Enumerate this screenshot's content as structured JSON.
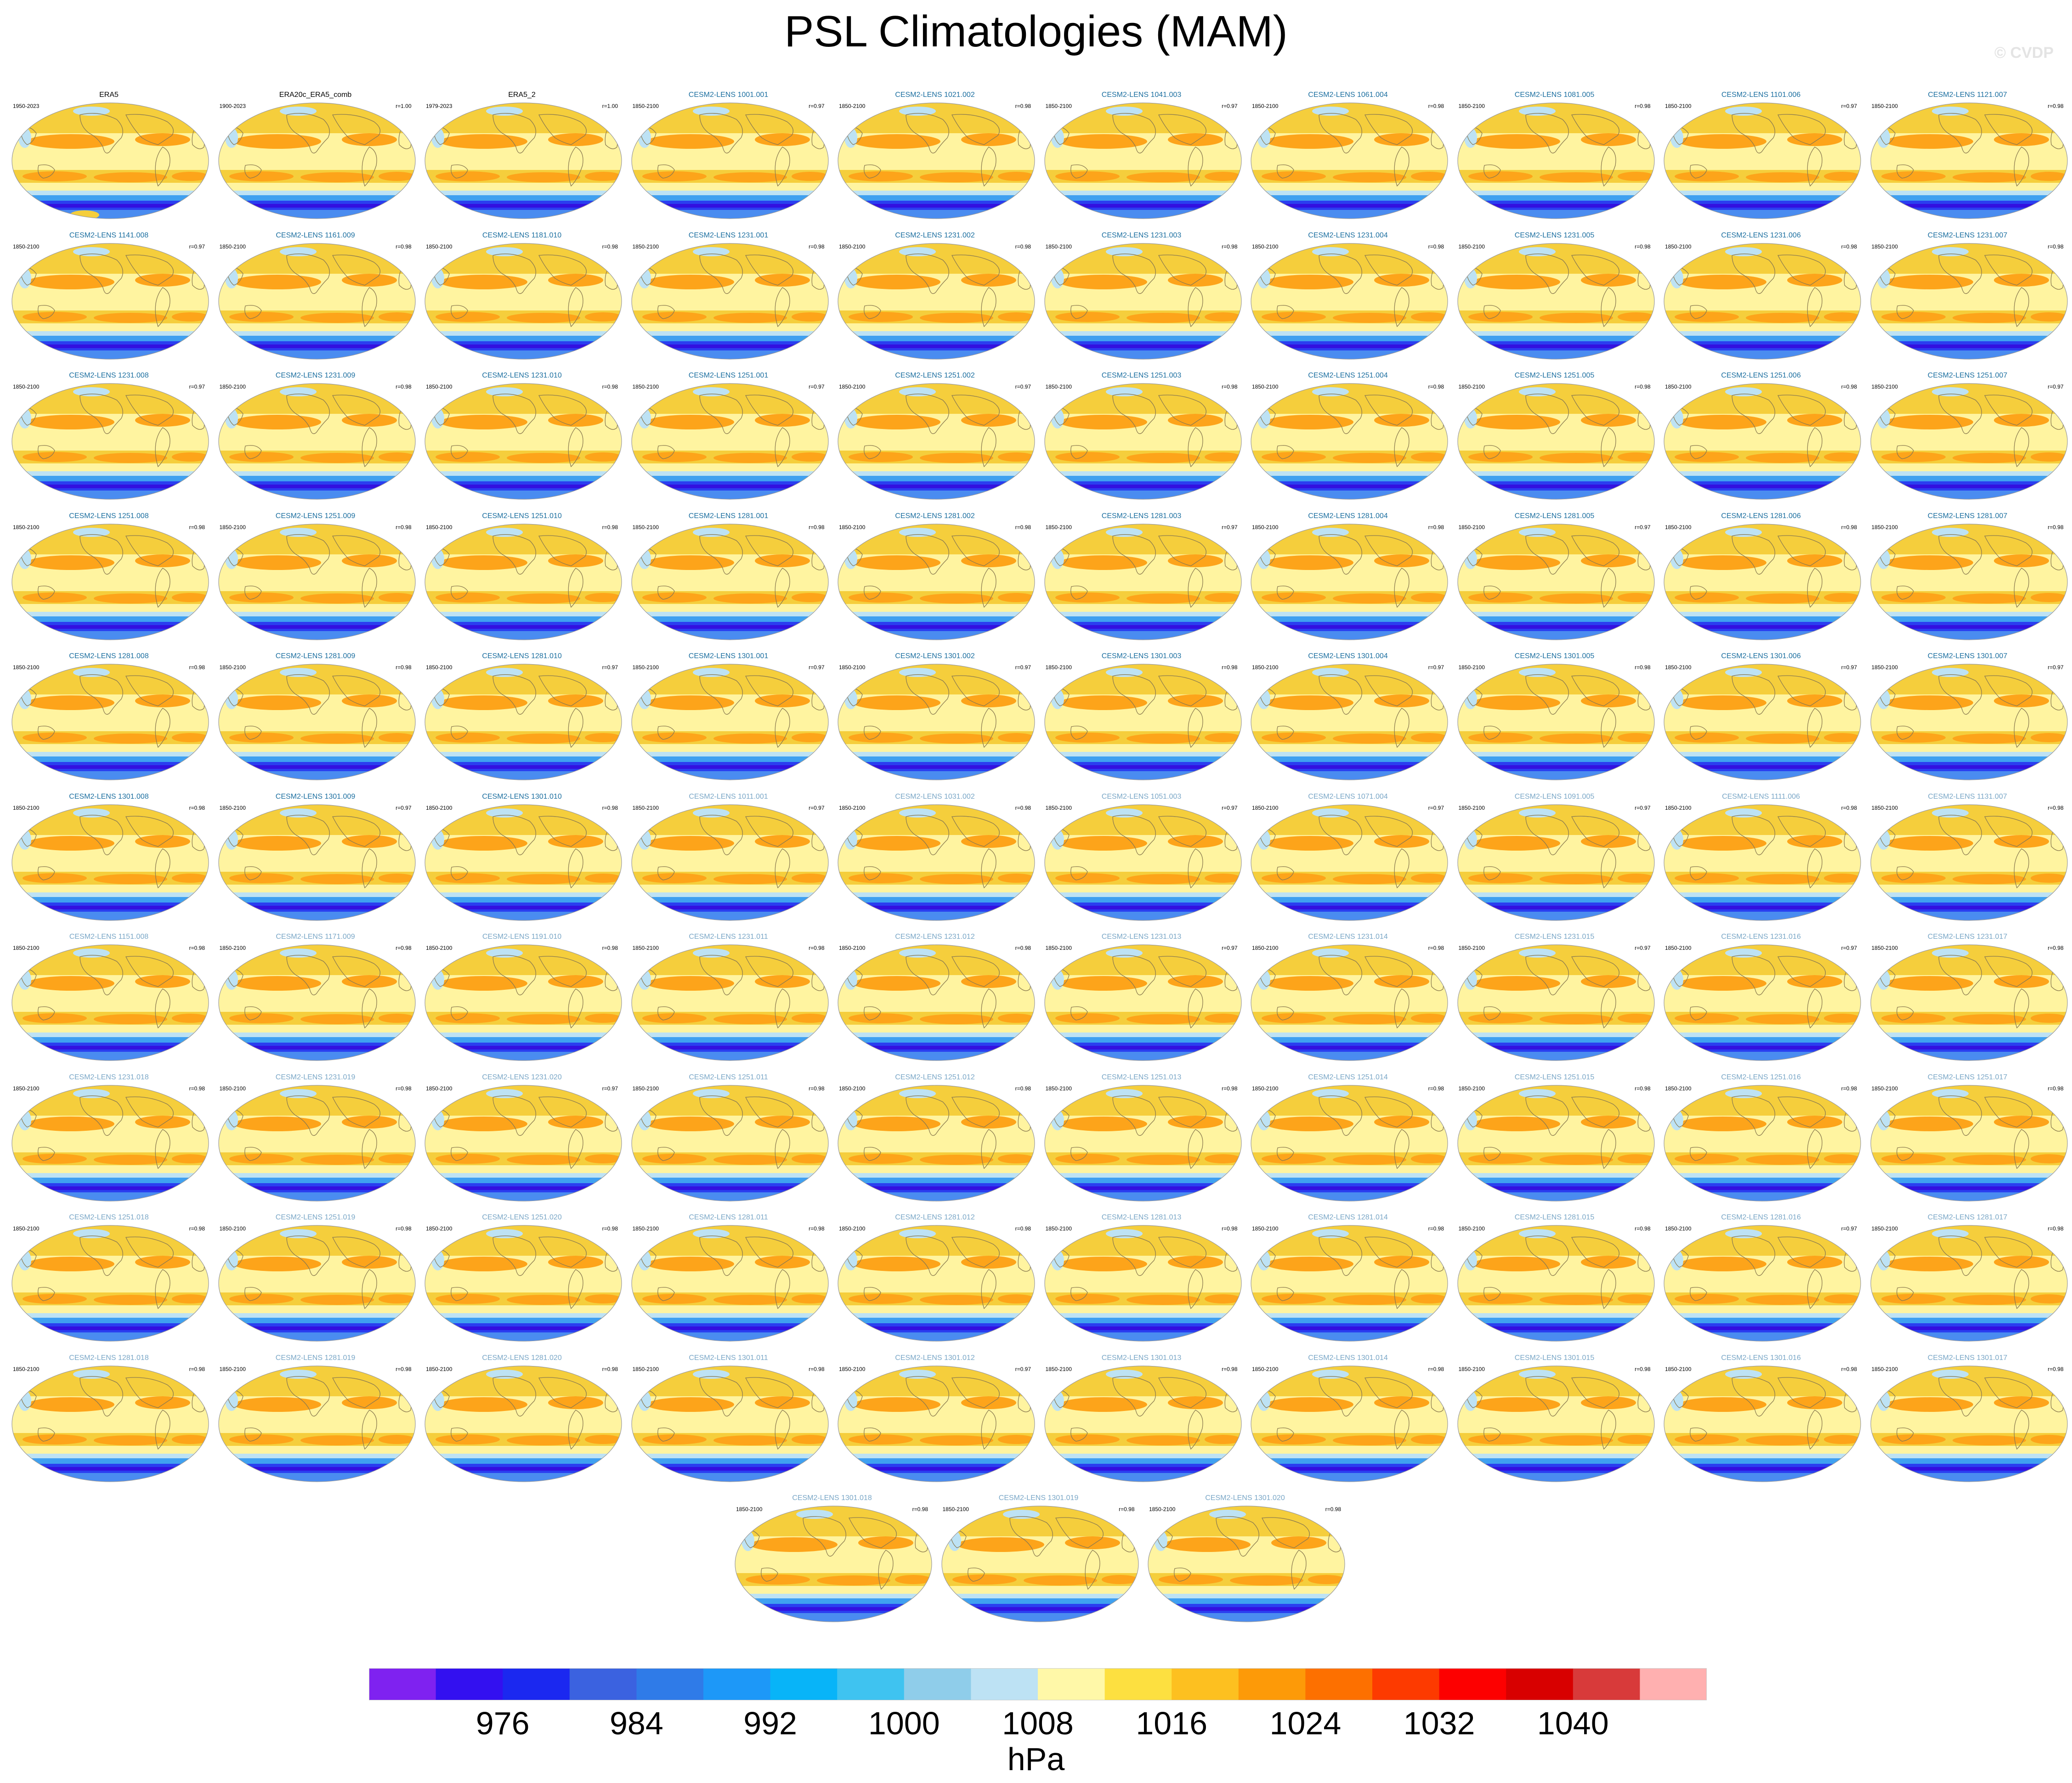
{
  "title": "PSL Climatologies (MAM)",
  "watermark": "© CVDP",
  "panels": [
    {
      "name": "ERA5",
      "years": "1950-2023",
      "r": "",
      "style": "obs"
    },
    {
      "name": "ERA20c_ERA5_comb",
      "years": "1900-2023",
      "r": "r=1.00",
      "style": "obs"
    },
    {
      "name": "ERA5_2",
      "years": "1979-2023",
      "r": "r=1.00",
      "style": "obs"
    },
    {
      "name": "CESM2-LENS 1001.001",
      "years": "1850-2100",
      "r": "r=0.97",
      "style": "m1"
    },
    {
      "name": "CESM2-LENS 1021.002",
      "years": "1850-2100",
      "r": "r=0.98",
      "style": "m1"
    },
    {
      "name": "CESM2-LENS 1041.003",
      "years": "1850-2100",
      "r": "r=0.97",
      "style": "m1"
    },
    {
      "name": "CESM2-LENS 1061.004",
      "years": "1850-2100",
      "r": "r=0.98",
      "style": "m1"
    },
    {
      "name": "CESM2-LENS 1081.005",
      "years": "1850-2100",
      "r": "r=0.98",
      "style": "m1"
    },
    {
      "name": "CESM2-LENS 1101.006",
      "years": "1850-2100",
      "r": "r=0.97",
      "style": "m1"
    },
    {
      "name": "CESM2-LENS 1121.007",
      "years": "1850-2100",
      "r": "r=0.98",
      "style": "m1"
    },
    {
      "name": "CESM2-LENS 1141.008",
      "years": "1850-2100",
      "r": "r=0.97",
      "style": "m1"
    },
    {
      "name": "CESM2-LENS 1161.009",
      "years": "1850-2100",
      "r": "r=0.98",
      "style": "m1"
    },
    {
      "name": "CESM2-LENS 1181.010",
      "years": "1850-2100",
      "r": "r=0.98",
      "style": "m1"
    },
    {
      "name": "CESM2-LENS 1231.001",
      "years": "1850-2100",
      "r": "r=0.98",
      "style": "m1"
    },
    {
      "name": "CESM2-LENS 1231.002",
      "years": "1850-2100",
      "r": "r=0.98",
      "style": "m1"
    },
    {
      "name": "CESM2-LENS 1231.003",
      "years": "1850-2100",
      "r": "r=0.98",
      "style": "m1"
    },
    {
      "name": "CESM2-LENS 1231.004",
      "years": "1850-2100",
      "r": "r=0.98",
      "style": "m1"
    },
    {
      "name": "CESM2-LENS 1231.005",
      "years": "1850-2100",
      "r": "r=0.98",
      "style": "m1"
    },
    {
      "name": "CESM2-LENS 1231.006",
      "years": "1850-2100",
      "r": "r=0.98",
      "style": "m1"
    },
    {
      "name": "CESM2-LENS 1231.007",
      "years": "1850-2100",
      "r": "r=0.98",
      "style": "m1"
    },
    {
      "name": "CESM2-LENS 1231.008",
      "years": "1850-2100",
      "r": "r=0.97",
      "style": "m1"
    },
    {
      "name": "CESM2-LENS 1231.009",
      "years": "1850-2100",
      "r": "r=0.98",
      "style": "m1"
    },
    {
      "name": "CESM2-LENS 1231.010",
      "years": "1850-2100",
      "r": "r=0.98",
      "style": "m1"
    },
    {
      "name": "CESM2-LENS 1251.001",
      "years": "1850-2100",
      "r": "r=0.97",
      "style": "m1"
    },
    {
      "name": "CESM2-LENS 1251.002",
      "years": "1850-2100",
      "r": "r=0.97",
      "style": "m1"
    },
    {
      "name": "CESM2-LENS 1251.003",
      "years": "1850-2100",
      "r": "r=0.98",
      "style": "m1"
    },
    {
      "name": "CESM2-LENS 1251.004",
      "years": "1850-2100",
      "r": "r=0.98",
      "style": "m1"
    },
    {
      "name": "CESM2-LENS 1251.005",
      "years": "1850-2100",
      "r": "r=0.98",
      "style": "m1"
    },
    {
      "name": "CESM2-LENS 1251.006",
      "years": "1850-2100",
      "r": "r=0.98",
      "style": "m1"
    },
    {
      "name": "CESM2-LENS 1251.007",
      "years": "1850-2100",
      "r": "r=0.97",
      "style": "m1"
    },
    {
      "name": "CESM2-LENS 1251.008",
      "years": "1850-2100",
      "r": "r=0.98",
      "style": "m1"
    },
    {
      "name": "CESM2-LENS 1251.009",
      "years": "1850-2100",
      "r": "r=0.98",
      "style": "m1"
    },
    {
      "name": "CESM2-LENS 1251.010",
      "years": "1850-2100",
      "r": "r=0.98",
      "style": "m1"
    },
    {
      "name": "CESM2-LENS 1281.001",
      "years": "1850-2100",
      "r": "r=0.98",
      "style": "m1"
    },
    {
      "name": "CESM2-LENS 1281.002",
      "years": "1850-2100",
      "r": "r=0.98",
      "style": "m1"
    },
    {
      "name": "CESM2-LENS 1281.003",
      "years": "1850-2100",
      "r": "r=0.97",
      "style": "m1"
    },
    {
      "name": "CESM2-LENS 1281.004",
      "years": "1850-2100",
      "r": "r=0.98",
      "style": "m1"
    },
    {
      "name": "CESM2-LENS 1281.005",
      "years": "1850-2100",
      "r": "r=0.97",
      "style": "m1"
    },
    {
      "name": "CESM2-LENS 1281.006",
      "years": "1850-2100",
      "r": "r=0.98",
      "style": "m1"
    },
    {
      "name": "CESM2-LENS 1281.007",
      "years": "1850-2100",
      "r": "r=0.98",
      "style": "m1"
    },
    {
      "name": "CESM2-LENS 1281.008",
      "years": "1850-2100",
      "r": "r=0.98",
      "style": "m1"
    },
    {
      "name": "CESM2-LENS 1281.009",
      "years": "1850-2100",
      "r": "r=0.98",
      "style": "m1"
    },
    {
      "name": "CESM2-LENS 1281.010",
      "years": "1850-2100",
      "r": "r=0.97",
      "style": "m1"
    },
    {
      "name": "CESM2-LENS 1301.001",
      "years": "1850-2100",
      "r": "r=0.97",
      "style": "m1"
    },
    {
      "name": "CESM2-LENS 1301.002",
      "years": "1850-2100",
      "r": "r=0.97",
      "style": "m1"
    },
    {
      "name": "CESM2-LENS 1301.003",
      "years": "1850-2100",
      "r": "r=0.98",
      "style": "m1"
    },
    {
      "name": "CESM2-LENS 1301.004",
      "years": "1850-2100",
      "r": "r=0.97",
      "style": "m1"
    },
    {
      "name": "CESM2-LENS 1301.005",
      "years": "1850-2100",
      "r": "r=0.98",
      "style": "m1"
    },
    {
      "name": "CESM2-LENS 1301.006",
      "years": "1850-2100",
      "r": "r=0.97",
      "style": "m1"
    },
    {
      "name": "CESM2-LENS 1301.007",
      "years": "1850-2100",
      "r": "r=0.97",
      "style": "m1"
    },
    {
      "name": "CESM2-LENS 1301.008",
      "years": "1850-2100",
      "r": "r=0.98",
      "style": "m1"
    },
    {
      "name": "CESM2-LENS 1301.009",
      "years": "1850-2100",
      "r": "r=0.97",
      "style": "m1"
    },
    {
      "name": "CESM2-LENS 1301.010",
      "years": "1850-2100",
      "r": "r=0.98",
      "style": "m1"
    },
    {
      "name": "CESM2-LENS 1011.001",
      "years": "1850-2100",
      "r": "r=0.97",
      "style": "m2"
    },
    {
      "name": "CESM2-LENS 1031.002",
      "years": "1850-2100",
      "r": "r=0.98",
      "style": "m2"
    },
    {
      "name": "CESM2-LENS 1051.003",
      "years": "1850-2100",
      "r": "r=0.97",
      "style": "m2"
    },
    {
      "name": "CESM2-LENS 1071.004",
      "years": "1850-2100",
      "r": "r=0.97",
      "style": "m2"
    },
    {
      "name": "CESM2-LENS 1091.005",
      "years": "1850-2100",
      "r": "r=0.97",
      "style": "m2"
    },
    {
      "name": "CESM2-LENS 1111.006",
      "years": "1850-2100",
      "r": "r=0.98",
      "style": "m2"
    },
    {
      "name": "CESM2-LENS 1131.007",
      "years": "1850-2100",
      "r": "r=0.98",
      "style": "m2"
    },
    {
      "name": "CESM2-LENS 1151.008",
      "years": "1850-2100",
      "r": "r=0.98",
      "style": "m2"
    },
    {
      "name": "CESM2-LENS 1171.009",
      "years": "1850-2100",
      "r": "r=0.98",
      "style": "m2"
    },
    {
      "name": "CESM2-LENS 1191.010",
      "years": "1850-2100",
      "r": "r=0.98",
      "style": "m2"
    },
    {
      "name": "CESM2-LENS 1231.011",
      "years": "1850-2100",
      "r": "r=0.98",
      "style": "m2"
    },
    {
      "name": "CESM2-LENS 1231.012",
      "years": "1850-2100",
      "r": "r=0.98",
      "style": "m2"
    },
    {
      "name": "CESM2-LENS 1231.013",
      "years": "1850-2100",
      "r": "r=0.97",
      "style": "m2"
    },
    {
      "name": "CESM2-LENS 1231.014",
      "years": "1850-2100",
      "r": "r=0.98",
      "style": "m2"
    },
    {
      "name": "CESM2-LENS 1231.015",
      "years": "1850-2100",
      "r": "r=0.97",
      "style": "m2"
    },
    {
      "name": "CESM2-LENS 1231.016",
      "years": "1850-2100",
      "r": "r=0.97",
      "style": "m2"
    },
    {
      "name": "CESM2-LENS 1231.017",
      "years": "1850-2100",
      "r": "r=0.98",
      "style": "m2"
    },
    {
      "name": "CESM2-LENS 1231.018",
      "years": "1850-2100",
      "r": "r=0.98",
      "style": "m2"
    },
    {
      "name": "CESM2-LENS 1231.019",
      "years": "1850-2100",
      "r": "r=0.98",
      "style": "m2"
    },
    {
      "name": "CESM2-LENS 1231.020",
      "years": "1850-2100",
      "r": "r=0.97",
      "style": "m2"
    },
    {
      "name": "CESM2-LENS 1251.011",
      "years": "1850-2100",
      "r": "r=0.98",
      "style": "m2"
    },
    {
      "name": "CESM2-LENS 1251.012",
      "years": "1850-2100",
      "r": "r=0.98",
      "style": "m2"
    },
    {
      "name": "CESM2-LENS 1251.013",
      "years": "1850-2100",
      "r": "r=0.98",
      "style": "m2"
    },
    {
      "name": "CESM2-LENS 1251.014",
      "years": "1850-2100",
      "r": "r=0.98",
      "style": "m2"
    },
    {
      "name": "CESM2-LENS 1251.015",
      "years": "1850-2100",
      "r": "r=0.98",
      "style": "m2"
    },
    {
      "name": "CESM2-LENS 1251.016",
      "years": "1850-2100",
      "r": "r=0.98",
      "style": "m2"
    },
    {
      "name": "CESM2-LENS 1251.017",
      "years": "1850-2100",
      "r": "r=0.98",
      "style": "m2"
    },
    {
      "name": "CESM2-LENS 1251.018",
      "years": "1850-2100",
      "r": "r=0.98",
      "style": "m2"
    },
    {
      "name": "CESM2-LENS 1251.019",
      "years": "1850-2100",
      "r": "r=0.98",
      "style": "m2"
    },
    {
      "name": "CESM2-LENS 1251.020",
      "years": "1850-2100",
      "r": "r=0.98",
      "style": "m2"
    },
    {
      "name": "CESM2-LENS 1281.011",
      "years": "1850-2100",
      "r": "r=0.98",
      "style": "m2"
    },
    {
      "name": "CESM2-LENS 1281.012",
      "years": "1850-2100",
      "r": "r=0.98",
      "style": "m2"
    },
    {
      "name": "CESM2-LENS 1281.013",
      "years": "1850-2100",
      "r": "r=0.98",
      "style": "m2"
    },
    {
      "name": "CESM2-LENS 1281.014",
      "years": "1850-2100",
      "r": "r=0.98",
      "style": "m2"
    },
    {
      "name": "CESM2-LENS 1281.015",
      "years": "1850-2100",
      "r": "r=0.98",
      "style": "m2"
    },
    {
      "name": "CESM2-LENS 1281.016",
      "years": "1850-2100",
      "r": "r=0.97",
      "style": "m2"
    },
    {
      "name": "CESM2-LENS 1281.017",
      "years": "1850-2100",
      "r": "r=0.98",
      "style": "m2"
    },
    {
      "name": "CESM2-LENS 1281.018",
      "years": "1850-2100",
      "r": "r=0.98",
      "style": "m2"
    },
    {
      "name": "CESM2-LENS 1281.019",
      "years": "1850-2100",
      "r": "r=0.98",
      "style": "m2"
    },
    {
      "name": "CESM2-LENS 1281.020",
      "years": "1850-2100",
      "r": "r=0.98",
      "style": "m2"
    },
    {
      "name": "CESM2-LENS 1301.011",
      "years": "1850-2100",
      "r": "r=0.98",
      "style": "m2"
    },
    {
      "name": "CESM2-LENS 1301.012",
      "years": "1850-2100",
      "r": "r=0.97",
      "style": "m2"
    },
    {
      "name": "CESM2-LENS 1301.013",
      "years": "1850-2100",
      "r": "r=0.98",
      "style": "m2"
    },
    {
      "name": "CESM2-LENS 1301.014",
      "years": "1850-2100",
      "r": "r=0.98",
      "style": "m2"
    },
    {
      "name": "CESM2-LENS 1301.015",
      "years": "1850-2100",
      "r": "r=0.98",
      "style": "m2"
    },
    {
      "name": "CESM2-LENS 1301.016",
      "years": "1850-2100",
      "r": "r=0.98",
      "style": "m2"
    },
    {
      "name": "CESM2-LENS 1301.017",
      "years": "1850-2100",
      "r": "r=0.98",
      "style": "m2"
    },
    {
      "name": "CESM2-LENS 1301.018",
      "years": "1850-2100",
      "r": "r=0.98",
      "style": "m2"
    },
    {
      "name": "CESM2-LENS 1301.019",
      "years": "1850-2100",
      "r": "r=0.98",
      "style": "m2"
    },
    {
      "name": "CESM2-LENS 1301.020",
      "years": "1850-2100",
      "r": "r=0.98",
      "style": "m2"
    }
  ],
  "colorbar": {
    "colors": [
      "#7f22f0",
      "#3310f0",
      "#1b28f0",
      "#3b62e0",
      "#2f7be8",
      "#1d98f8",
      "#08b4f8",
      "#3fc3f0",
      "#8fcdea",
      "#bde2f4",
      "#fff8a8",
      "#fde040",
      "#fdc020",
      "#fd9a08",
      "#fd7000",
      "#fd3a00",
      "#fd0000",
      "#d80000",
      "#d83a3a",
      "#ffb0b0"
    ],
    "tick_labels": [
      "976",
      "984",
      "992",
      "1000",
      "1008",
      "1016",
      "1024",
      "1032",
      "1040"
    ],
    "units": "hPa"
  },
  "map_colors": {
    "land": "#f5ce3c",
    "subtropical_high": "#fda41a",
    "midlatitude": "#fff4a0",
    "sea_ice_blue": "#bde2f4",
    "southern_trough": "#2a3ef0",
    "southern_trough_core": "#3310e0",
    "coast": "#8a7a50"
  }
}
